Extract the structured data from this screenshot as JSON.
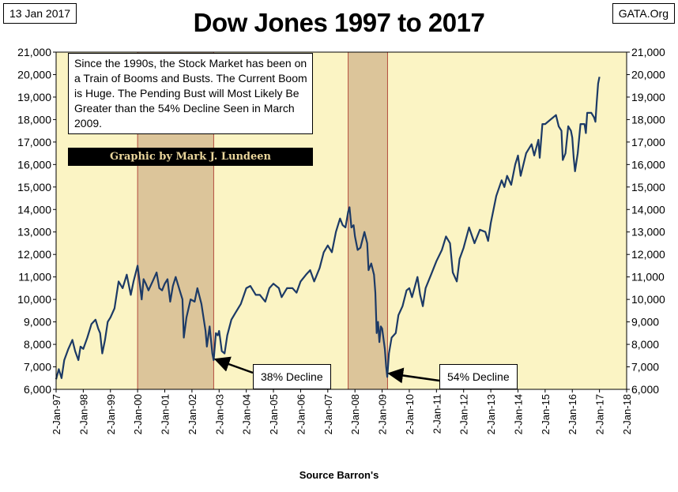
{
  "header": {
    "date": "13 Jan 2017",
    "source": "GATA.Org",
    "title": "Dow Jones 1997 to 2017"
  },
  "note": {
    "text": "Since the 1990s, the Stock Market has been on a Train of Booms and Busts.  The Current Boom is Huge.  The Pending Bust will Most Likely Be Greater than the 54% Decline Seen in March 2009.",
    "credit": "Graphic by Mark J. Lundeen"
  },
  "colors": {
    "plot_bg": "#fbf4c4",
    "shade": "#dcc59a",
    "shade_border": "#b24b3c",
    "line": "#1c3a66"
  },
  "chart_data": {
    "type": "line",
    "title": "Dow Jones 1997 to 2017",
    "xlabel": "Source Barron's",
    "ylabel": "",
    "ylim": [
      6000,
      21000
    ],
    "xlim": [
      1997,
      2018
    ],
    "x_ticks": [
      "2-Jan-97",
      "2-Jan-98",
      "2-Jan-99",
      "2-Jan-00",
      "2-Jan-01",
      "2-Jan-02",
      "2-Jan-03",
      "2-Jan-04",
      "2-Jan-05",
      "2-Jan-06",
      "2-Jan-07",
      "2-Jan-08",
      "2-Jan-09",
      "2-Jan-10",
      "2-Jan-11",
      "2-Jan-12",
      "2-Jan-13",
      "2-Jan-14",
      "2-Jan-15",
      "2-Jan-16",
      "2-Jan-17",
      "2-Jan-18"
    ],
    "y_ticks": [
      "6,000",
      "7,000",
      "8,000",
      "9,000",
      "10,000",
      "11,000",
      "12,000",
      "13,000",
      "14,000",
      "15,000",
      "16,000",
      "17,000",
      "18,000",
      "19,000",
      "20,000",
      "21,000"
    ],
    "shaded_regions": [
      {
        "start": 2000.0,
        "end": 2002.8
      },
      {
        "start": 2007.75,
        "end": 2009.2
      }
    ],
    "annotations": [
      {
        "label": "38% Decline",
        "x": 2002.8,
        "y": 7300
      },
      {
        "label": "54% Decline",
        "x": 2009.19,
        "y": 6550
      }
    ],
    "series": [
      {
        "name": "Dow Jones Industrial Average",
        "points": [
          [
            1997.0,
            6450
          ],
          [
            1997.1,
            6900
          ],
          [
            1997.2,
            6500
          ],
          [
            1997.3,
            7300
          ],
          [
            1997.45,
            7800
          ],
          [
            1997.6,
            8200
          ],
          [
            1997.7,
            7700
          ],
          [
            1997.82,
            7300
          ],
          [
            1997.9,
            7900
          ],
          [
            1998.0,
            7800
          ],
          [
            1998.15,
            8300
          ],
          [
            1998.3,
            8900
          ],
          [
            1998.45,
            9100
          ],
          [
            1998.55,
            8700
          ],
          [
            1998.62,
            8500
          ],
          [
            1998.7,
            7600
          ],
          [
            1998.8,
            8200
          ],
          [
            1998.9,
            9000
          ],
          [
            1999.0,
            9200
          ],
          [
            1999.15,
            9600
          ],
          [
            1999.3,
            10800
          ],
          [
            1999.45,
            10500
          ],
          [
            1999.6,
            11100
          ],
          [
            1999.75,
            10200
          ],
          [
            1999.85,
            10800
          ],
          [
            2000.0,
            11500
          ],
          [
            2000.05,
            11000
          ],
          [
            2000.15,
            10000
          ],
          [
            2000.22,
            10900
          ],
          [
            2000.3,
            10700
          ],
          [
            2000.4,
            10400
          ],
          [
            2000.55,
            10800
          ],
          [
            2000.7,
            11200
          ],
          [
            2000.8,
            10500
          ],
          [
            2000.9,
            10400
          ],
          [
            2001.0,
            10700
          ],
          [
            2001.1,
            10900
          ],
          [
            2001.2,
            9900
          ],
          [
            2001.3,
            10600
          ],
          [
            2001.4,
            11000
          ],
          [
            2001.55,
            10400
          ],
          [
            2001.65,
            10000
          ],
          [
            2001.7,
            8300
          ],
          [
            2001.8,
            9200
          ],
          [
            2001.95,
            10000
          ],
          [
            2002.1,
            9900
          ],
          [
            2002.2,
            10500
          ],
          [
            2002.35,
            9800
          ],
          [
            2002.5,
            8600
          ],
          [
            2002.55,
            7900
          ],
          [
            2002.65,
            8800
          ],
          [
            2002.75,
            7600
          ],
          [
            2002.8,
            7300
          ],
          [
            2002.88,
            8500
          ],
          [
            2002.95,
            8400
          ],
          [
            2003.0,
            8600
          ],
          [
            2003.1,
            7700
          ],
          [
            2003.2,
            7600
          ],
          [
            2003.3,
            8400
          ],
          [
            2003.45,
            9100
          ],
          [
            2003.6,
            9400
          ],
          [
            2003.8,
            9800
          ],
          [
            2004.0,
            10500
          ],
          [
            2004.15,
            10600
          ],
          [
            2004.35,
            10200
          ],
          [
            2004.5,
            10200
          ],
          [
            2004.7,
            9900
          ],
          [
            2004.85,
            10500
          ],
          [
            2005.0,
            10700
          ],
          [
            2005.2,
            10500
          ],
          [
            2005.3,
            10100
          ],
          [
            2005.5,
            10500
          ],
          [
            2005.7,
            10500
          ],
          [
            2005.85,
            10300
          ],
          [
            2006.0,
            10800
          ],
          [
            2006.2,
            11100
          ],
          [
            2006.35,
            11300
          ],
          [
            2006.5,
            10800
          ],
          [
            2006.7,
            11400
          ],
          [
            2006.85,
            12100
          ],
          [
            2007.0,
            12400
          ],
          [
            2007.15,
            12100
          ],
          [
            2007.3,
            13000
          ],
          [
            2007.45,
            13600
          ],
          [
            2007.55,
            13300
          ],
          [
            2007.65,
            13200
          ],
          [
            2007.75,
            13900
          ],
          [
            2007.8,
            14100
          ],
          [
            2007.87,
            13200
          ],
          [
            2007.95,
            13300
          ],
          [
            2008.0,
            12800
          ],
          [
            2008.1,
            12200
          ],
          [
            2008.2,
            12300
          ],
          [
            2008.35,
            13000
          ],
          [
            2008.45,
            12500
          ],
          [
            2008.5,
            11300
          ],
          [
            2008.6,
            11600
          ],
          [
            2008.7,
            11100
          ],
          [
            2008.75,
            10300
          ],
          [
            2008.8,
            8500
          ],
          [
            2008.85,
            9000
          ],
          [
            2008.9,
            8100
          ],
          [
            2008.95,
            8800
          ],
          [
            2009.0,
            8700
          ],
          [
            2009.1,
            7800
          ],
          [
            2009.15,
            7000
          ],
          [
            2009.19,
            6550
          ],
          [
            2009.25,
            7600
          ],
          [
            2009.35,
            8300
          ],
          [
            2009.5,
            8500
          ],
          [
            2009.6,
            9300
          ],
          [
            2009.75,
            9700
          ],
          [
            2009.9,
            10400
          ],
          [
            2010.0,
            10500
          ],
          [
            2010.1,
            10100
          ],
          [
            2010.3,
            11000
          ],
          [
            2010.4,
            10200
          ],
          [
            2010.5,
            9700
          ],
          [
            2010.6,
            10500
          ],
          [
            2010.8,
            11100
          ],
          [
            2011.0,
            11700
          ],
          [
            2011.2,
            12200
          ],
          [
            2011.35,
            12800
          ],
          [
            2011.5,
            12500
          ],
          [
            2011.6,
            11200
          ],
          [
            2011.75,
            10800
          ],
          [
            2011.85,
            11800
          ],
          [
            2012.0,
            12300
          ],
          [
            2012.2,
            13200
          ],
          [
            2012.4,
            12500
          ],
          [
            2012.6,
            13100
          ],
          [
            2012.8,
            13000
          ],
          [
            2012.9,
            12600
          ],
          [
            2013.0,
            13400
          ],
          [
            2013.2,
            14600
          ],
          [
            2013.4,
            15300
          ],
          [
            2013.5,
            15000
          ],
          [
            2013.6,
            15500
          ],
          [
            2013.75,
            15100
          ],
          [
            2013.9,
            16000
          ],
          [
            2014.0,
            16400
          ],
          [
            2014.1,
            15500
          ],
          [
            2014.3,
            16500
          ],
          [
            2014.5,
            16900
          ],
          [
            2014.6,
            16400
          ],
          [
            2014.75,
            17100
          ],
          [
            2014.8,
            16300
          ],
          [
            2014.9,
            17800
          ],
          [
            2015.0,
            17800
          ],
          [
            2015.2,
            18000
          ],
          [
            2015.4,
            18200
          ],
          [
            2015.5,
            17700
          ],
          [
            2015.6,
            17500
          ],
          [
            2015.65,
            16200
          ],
          [
            2015.75,
            16500
          ],
          [
            2015.85,
            17700
          ],
          [
            2015.95,
            17500
          ],
          [
            2016.0,
            17200
          ],
          [
            2016.05,
            16300
          ],
          [
            2016.1,
            15700
          ],
          [
            2016.2,
            16500
          ],
          [
            2016.3,
            17800
          ],
          [
            2016.45,
            17800
          ],
          [
            2016.5,
            17400
          ],
          [
            2016.55,
            18300
          ],
          [
            2016.7,
            18300
          ],
          [
            2016.8,
            18100
          ],
          [
            2016.85,
            17900
          ],
          [
            2016.9,
            18800
          ],
          [
            2016.95,
            19600
          ],
          [
            2017.0,
            19900
          ]
        ]
      }
    ]
  }
}
